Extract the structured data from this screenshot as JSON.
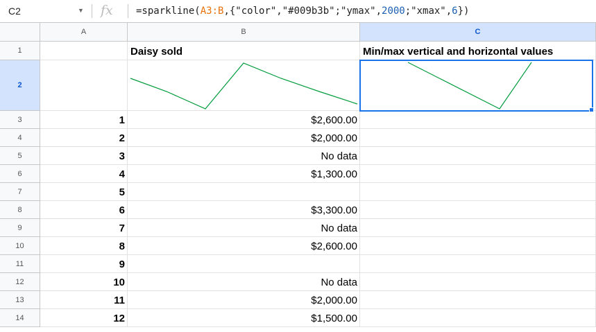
{
  "name_box": "C2",
  "formula": [
    {
      "text": "=sparkline(",
      "kind": "plain"
    },
    {
      "text": "A3:B",
      "kind": "range"
    },
    {
      "text": ",{\"color\",\"#009b3b\";\"ymax\",",
      "kind": "plain"
    },
    {
      "text": "2000",
      "kind": "number"
    },
    {
      "text": ";\"xmax\",",
      "kind": "plain"
    },
    {
      "text": "6",
      "kind": "number"
    },
    {
      "text": "})",
      "kind": "plain"
    }
  ],
  "columns": [
    "A",
    "B",
    "C"
  ],
  "rows": [
    {
      "label": "1",
      "B": "Daisy sold",
      "C": "Min/max vertical and horizontal values"
    },
    {
      "label": "2"
    },
    {
      "label": "3",
      "A": "1",
      "B": "$2,600.00"
    },
    {
      "label": "4",
      "A": "2",
      "B": "$2,000.00"
    },
    {
      "label": "5",
      "A": "3",
      "B": "No data"
    },
    {
      "label": "6",
      "A": "4",
      "B": "$1,300.00"
    },
    {
      "label": "7",
      "A": "5"
    },
    {
      "label": "8",
      "A": "6",
      "B": "$3,300.00"
    },
    {
      "label": "9",
      "A": "7",
      "B": "No data"
    },
    {
      "label": "10",
      "A": "8",
      "B": "$2,600.00"
    },
    {
      "label": "11",
      "A": "9"
    },
    {
      "label": "12",
      "A": "10",
      "B": "No data"
    },
    {
      "label": "13",
      "A": "11",
      "B": "$2,000.00"
    },
    {
      "label": "14",
      "A": "12",
      "B": "$1,500.00"
    }
  ]
}
